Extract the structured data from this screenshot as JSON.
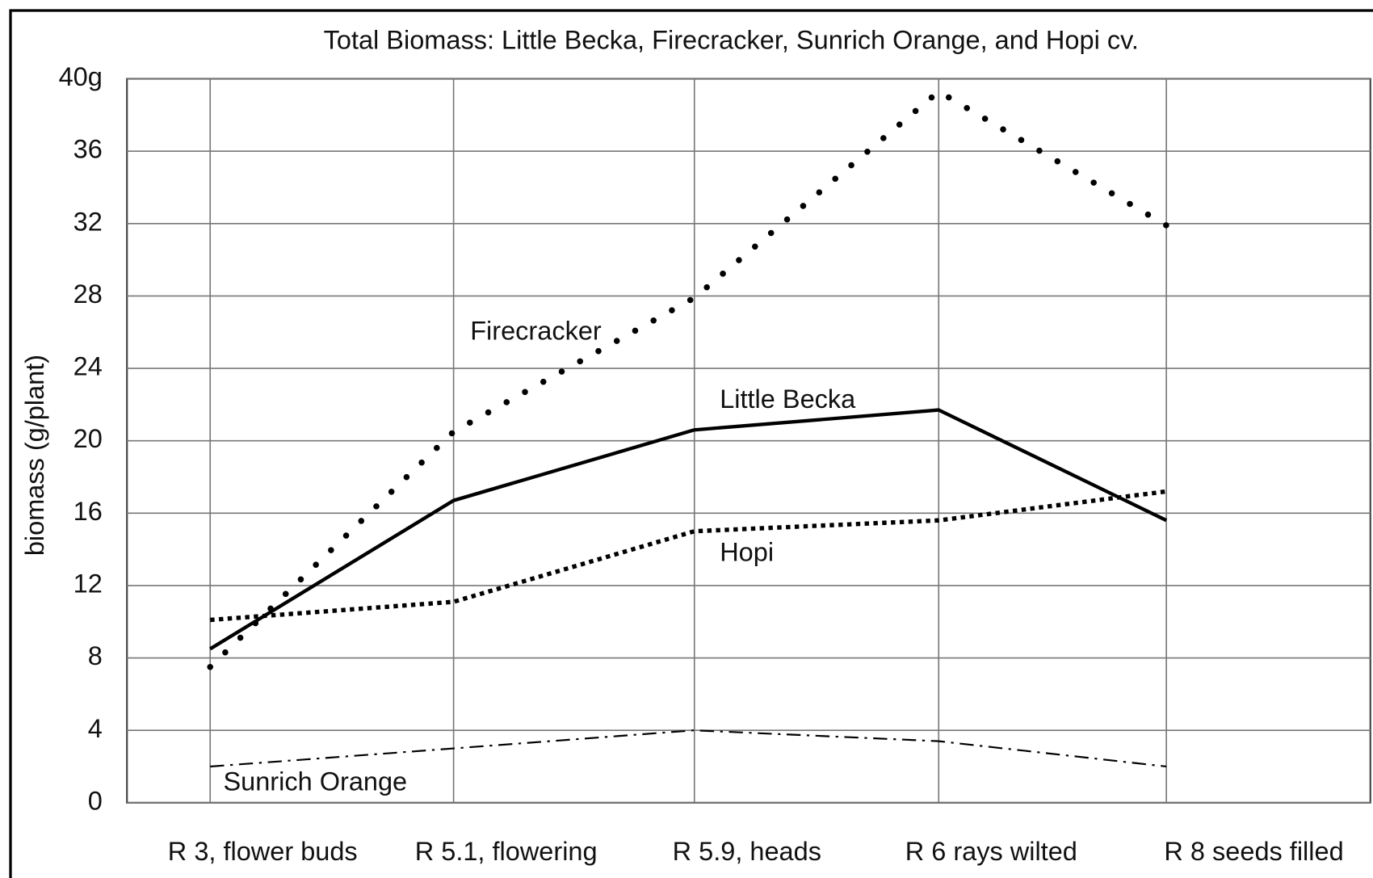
{
  "chart_data": {
    "type": "line",
    "title": "Total Biomass: Little Becka, Firecracker, Sunrich Orange, and Hopi cv.",
    "y_label": "biomass (g/plant)",
    "categories": [
      "R 3, flower buds",
      "R 5.1, flowering",
      "R 5.9, heads",
      "R 6 rays wilted",
      "R 8 seeds filled"
    ],
    "series": [
      {
        "name": "Little Becka",
        "color": "#000000",
        "style": "solid",
        "values": [
          8.5,
          16.7,
          20.6,
          21.7,
          15.6
        ]
      },
      {
        "name": "Firecracker",
        "color": "#000000",
        "style": "dotted",
        "values": [
          7.5,
          20.5,
          27.9,
          39.3,
          31.9
        ]
      },
      {
        "name": "Hopi",
        "color": "#000000",
        "style": "dense-dotted",
        "values": [
          10.1,
          11.1,
          15.0,
          15.6,
          17.2
        ]
      },
      {
        "name": "Sunrich Orange",
        "color": "#000000",
        "style": "dash-dot",
        "values": [
          2.0,
          3.0,
          4.0,
          3.4,
          2.0
        ]
      }
    ],
    "ylim": [
      0,
      40
    ],
    "yticks": [
      0,
      4,
      8,
      12,
      16,
      20,
      24,
      28,
      32,
      36,
      {
        "value": 40,
        "label": "40g"
      }
    ],
    "grid": true
  }
}
